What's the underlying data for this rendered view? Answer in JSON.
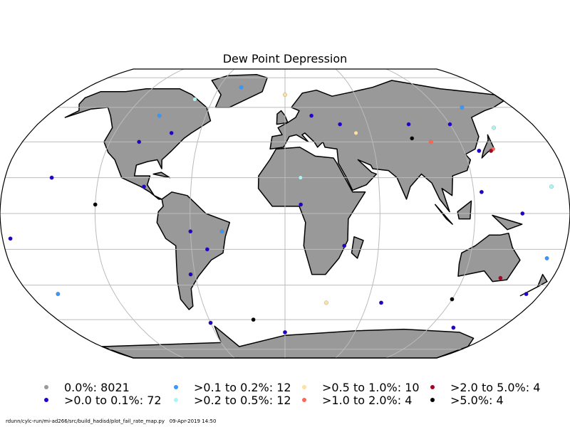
{
  "title": "Dew Point Depression",
  "footer": {
    "script_path": "rdunn/cylc-run/mi-ad266/src/build_hadisd/plot_fail_rate_map.py",
    "date": "09-Apr-2019 14:50"
  },
  "legend": [
    {
      "label": "0.0%: 8021",
      "color": "#999999"
    },
    {
      "label": ">0.0 to 0.1%: 72",
      "color": "#2200cc"
    },
    {
      "label": ">0.1 to 0.2%: 12",
      "color": "#3399ff"
    },
    {
      "label": ">0.2 to 0.5%: 12",
      "color": "#aaf5f5"
    },
    {
      "label": ">0.5 to 1.0%: 10",
      "color": "#ffe0a0"
    },
    {
      "label": ">1.0 to 2.0%: 4",
      "color": "#ff6655"
    },
    {
      "label": ">2.0 to 5.0%: 4",
      "color": "#aa0022"
    },
    {
      "label": ">5.0%: 4",
      "color": "#000000"
    }
  ],
  "map": {
    "projection": "Robinson",
    "gridlines": true,
    "land_color": "#999999",
    "coastline_color": "#000000"
  },
  "stations": [
    {
      "lon": -150,
      "lat": 20,
      "cat": 1
    },
    {
      "lon": -175,
      "lat": -14,
      "cat": 1
    },
    {
      "lon": -100,
      "lat": 40,
      "cat": 1
    },
    {
      "lon": -80,
      "lat": 45,
      "cat": 1
    },
    {
      "lon": -90,
      "lat": 15,
      "cat": 1
    },
    {
      "lon": -60,
      "lat": -10,
      "cat": 1
    },
    {
      "lon": -50,
      "lat": -20,
      "cat": 1
    },
    {
      "lon": -63,
      "lat": -34,
      "cat": 1
    },
    {
      "lon": 20,
      "lat": 55,
      "cat": 1
    },
    {
      "lon": 40,
      "lat": 50,
      "cat": 1
    },
    {
      "lon": 90,
      "lat": 50,
      "cat": 1
    },
    {
      "lon": 120,
      "lat": 50,
      "cat": 1
    },
    {
      "lon": 130,
      "lat": 35,
      "cat": 1
    },
    {
      "lon": 125,
      "lat": 12,
      "cat": 1
    },
    {
      "lon": 10,
      "lat": 5,
      "cat": 1
    },
    {
      "lon": 38,
      "lat": -18,
      "cat": 1
    },
    {
      "lon": 70,
      "lat": -50,
      "cat": 1
    },
    {
      "lon": 140,
      "lat": -65,
      "cat": 1
    },
    {
      "lon": -60,
      "lat": -62,
      "cat": 1
    },
    {
      "lon": 0,
      "lat": -68,
      "cat": 1
    },
    {
      "lon": 170,
      "lat": -45,
      "cat": 1
    },
    {
      "lon": 150,
      "lat": 0,
      "cat": 1
    },
    {
      "lon": -40,
      "lat": 73,
      "cat": 2
    },
    {
      "lon": 140,
      "lat": 60,
      "cat": 2
    },
    {
      "lon": -95,
      "lat": 55,
      "cat": 2
    },
    {
      "lon": 170,
      "lat": -25,
      "cat": 2
    },
    {
      "lon": -40,
      "lat": -10,
      "cat": 2
    },
    {
      "lon": -160,
      "lat": -45,
      "cat": 2
    },
    {
      "lon": 150,
      "lat": 48,
      "cat": 3
    },
    {
      "lon": 10,
      "lat": 20,
      "cat": 3
    },
    {
      "lon": -75,
      "lat": 65,
      "cat": 3
    },
    {
      "lon": 170,
      "lat": 15,
      "cat": 3
    },
    {
      "lon": 50,
      "lat": 45,
      "cat": 4
    },
    {
      "lon": 30,
      "lat": -50,
      "cat": 4
    },
    {
      "lon": 0,
      "lat": 68,
      "cat": 4
    },
    {
      "lon": 140,
      "lat": 36,
      "cat": 5
    },
    {
      "lon": 100,
      "lat": 40,
      "cat": 5
    },
    {
      "lon": 145,
      "lat": -36,
      "cat": 6
    },
    {
      "lon": 138,
      "lat": 35,
      "cat": 6
    },
    {
      "lon": 88,
      "lat": 42,
      "cat": 7
    },
    {
      "lon": -25,
      "lat": -60,
      "cat": 7
    },
    {
      "lon": -120,
      "lat": 5,
      "cat": 7
    },
    {
      "lon": 120,
      "lat": -48,
      "cat": 7
    }
  ]
}
